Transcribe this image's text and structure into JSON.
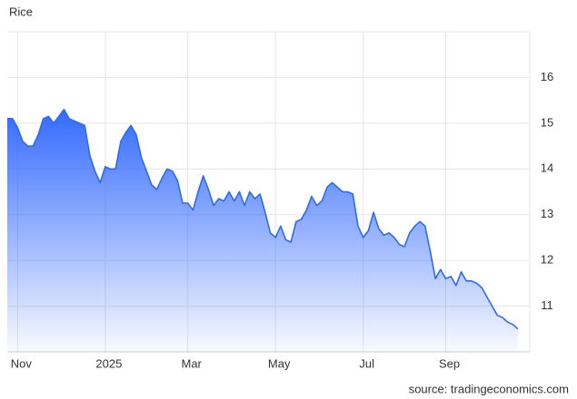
{
  "chart_data": {
    "type": "area",
    "title": "Rice",
    "categories": [
      null,
      null,
      "Nov",
      null,
      null,
      null,
      null,
      null,
      null,
      null,
      null,
      null,
      null,
      null,
      null,
      null,
      null,
      null,
      null,
      "2025",
      null,
      null,
      null,
      null,
      null,
      null,
      null,
      null,
      null,
      null,
      null,
      null,
      null,
      null,
      null,
      "Mar",
      null,
      null,
      null,
      null,
      null,
      null,
      null,
      null,
      null,
      null,
      null,
      null,
      null,
      null,
      null,
      null,
      "May",
      null,
      null,
      null,
      null,
      null,
      null,
      null,
      null,
      null,
      null,
      null,
      null,
      null,
      null,
      null,
      null,
      "Jul",
      null,
      null,
      null,
      null,
      null,
      null,
      null,
      null,
      null,
      null,
      null,
      null,
      null,
      null,
      null,
      "Sep",
      null,
      null,
      null,
      null,
      null,
      null,
      null,
      null,
      null,
      null,
      null,
      null,
      null,
      null
    ],
    "series": [
      {
        "name": "Rice",
        "color": "#2f6be8",
        "values": [
          15.1,
          15.1,
          14.9,
          14.6,
          14.5,
          14.5,
          14.75,
          15.1,
          15.15,
          15.0,
          15.15,
          15.3,
          15.1,
          15.05,
          15.0,
          14.95,
          14.3,
          13.95,
          13.7,
          14.05,
          14.0,
          14.0,
          14.6,
          14.8,
          14.95,
          14.75,
          14.25,
          13.95,
          13.65,
          13.55,
          13.8,
          14.0,
          13.95,
          13.75,
          13.25,
          13.25,
          13.1,
          13.5,
          13.85,
          13.55,
          13.2,
          13.35,
          13.3,
          13.5,
          13.3,
          13.5,
          13.2,
          13.5,
          13.35,
          13.45,
          13.05,
          12.6,
          12.5,
          12.75,
          12.45,
          12.4,
          12.85,
          12.9,
          13.1,
          13.4,
          13.2,
          13.3,
          13.6,
          13.7,
          13.6,
          13.5,
          13.5,
          13.45,
          12.75,
          12.5,
          12.65,
          13.05,
          12.7,
          12.55,
          12.6,
          12.5,
          12.35,
          12.3,
          12.6,
          12.75,
          12.85,
          12.75,
          12.2,
          11.6,
          11.8,
          11.6,
          11.65,
          11.45,
          11.75,
          11.55,
          11.55,
          11.5,
          11.4,
          11.2,
          11.0,
          10.8,
          10.75,
          10.65,
          10.6,
          10.5
        ]
      }
    ],
    "ylim": [
      10,
      17
    ],
    "yticks": [
      11,
      12,
      13,
      14,
      15,
      16
    ],
    "grid": true
  },
  "source": "source: tradingeconomics.com"
}
